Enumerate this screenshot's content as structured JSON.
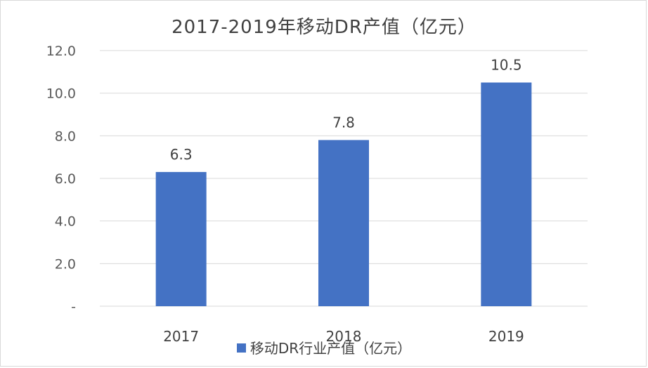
{
  "chart_data": {
    "type": "bar",
    "title": "2017-2019年移动DR产值（亿元）",
    "categories": [
      "2017",
      "2018",
      "2019"
    ],
    "series": [
      {
        "name": "移动DR行业产值（亿元）",
        "values": [
          6.3,
          7.8,
          10.5
        ]
      }
    ],
    "data_labels": [
      "6.3",
      "7.8",
      "10.5"
    ],
    "y_ticks": [
      "-",
      "2.0",
      "4.0",
      "6.0",
      "8.0",
      "10.0",
      "12.0"
    ],
    "ylim": [
      0,
      12
    ],
    "grid": true,
    "legend_position": "bottom",
    "bar_color": "#4472c4",
    "grid_color": "#d9d9d9"
  }
}
